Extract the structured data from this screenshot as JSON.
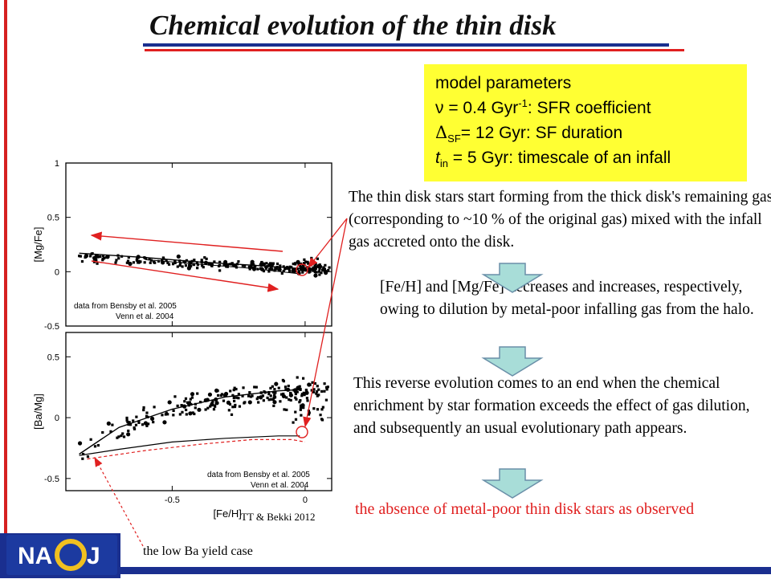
{
  "title": "Chemical evolution of the thin disk",
  "params": {
    "heading": "model parameters",
    "nu": "ν = 0.4 Gyr",
    "nu_exp": "-1",
    "nu_rest": ": SFR coefficient",
    "delta": "Δ",
    "delta_sub": "SF",
    "delta_rest": "= 12 Gyr: SF duration",
    "tin": "t",
    "tin_sub": "in",
    "tin_rest": " = 5 Gyr: timescale of an infall"
  },
  "text": {
    "para1": "The thin disk stars start forming from the thick disk's remaining gas (corresponding to ~10 % of the original gas) mixed with the infall gas accreted onto the disk.",
    "para2": "[Fe/H] and [Mg/Fe] decreases and increases, respectively, owing to dilution by metal-poor infalling gas from the halo.",
    "para3": "This reverse evolution comes to an end when the chemical enrichment by star formation exceeds the effect of gas dilution, and subsequently an usual evolutionary path appears.",
    "conclusion": "the absence of metal-poor thin disk stars as observed",
    "low_ba": "the low Ba yield case",
    "credit": "TT & Bekki 2012"
  },
  "colors": {
    "title_blue": "#1a2f8f",
    "accent_red": "#e02020",
    "highlight_yellow": "#ffff33",
    "flow_arrow": "#a8ddd8"
  },
  "logo_text": "NAOJ",
  "chart_data": [
    {
      "type": "scatter",
      "ylabel": "[Mg/Fe]",
      "ylim": [
        -0.5,
        1.0
      ],
      "xlim": [
        -0.9,
        0.1
      ],
      "yticks": [
        "1",
        "0.5",
        "0",
        "-0.5"
      ],
      "source_line1": "data from Bensby et al. 2005",
      "source_line2": "Venn et al. 2004",
      "model": {
        "x": [
          -0.85,
          -0.6,
          -0.4,
          -0.2,
          -0.02
        ],
        "y": [
          0.17,
          0.13,
          0.09,
          0.06,
          0.03
        ]
      },
      "model2": {
        "x": [
          -0.6,
          -0.4,
          -0.2,
          -0.02
        ],
        "y": [
          0.11,
          0.07,
          0.03,
          -0.02
        ]
      }
    },
    {
      "type": "scatter",
      "ylabel": "[Ba/Mg]",
      "xlabel": "[Fe/H]",
      "ylim": [
        -0.6,
        0.7
      ],
      "xlim": [
        -0.9,
        0.1
      ],
      "yticks": [
        "0.5",
        "0",
        "-0.5"
      ],
      "xticks": [
        "-0.5",
        "0"
      ],
      "source_line1": "data from Bensby et al. 2005",
      "source_line2": "Venn et al. 2004",
      "model": {
        "x": [
          -0.85,
          -0.7,
          -0.5,
          -0.3,
          -0.1,
          -0.02
        ],
        "y": [
          -0.3,
          -0.08,
          0.07,
          0.17,
          0.22,
          0.23
        ]
      },
      "model_lowba": {
        "x": [
          -0.85,
          -0.7,
          -0.5,
          -0.3,
          -0.1,
          -0.02
        ],
        "y": [
          -0.31,
          -0.26,
          -0.2,
          -0.17,
          -0.15,
          -0.15
        ]
      },
      "model_dashed": {
        "x": [
          -0.82,
          -0.6,
          -0.4,
          -0.2,
          -0.05,
          0.0
        ],
        "y": [
          -0.34,
          -0.27,
          -0.22,
          -0.18,
          -0.18,
          -0.2
        ]
      }
    }
  ]
}
